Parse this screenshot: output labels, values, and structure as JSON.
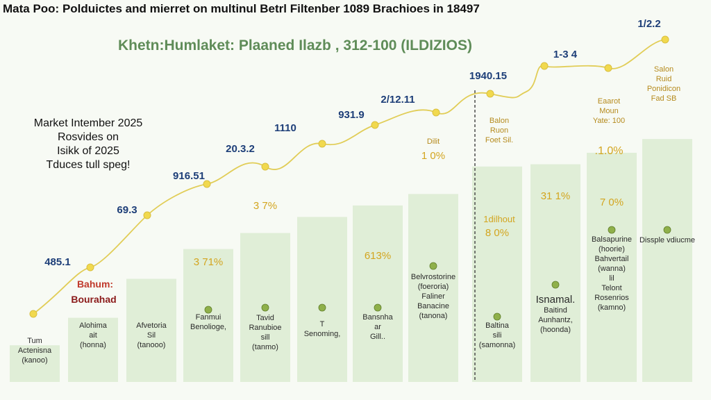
{
  "title": "Mata Poo: Polduictes and mierret on multinul Betrl Filtenber 1089 Brachioes in 18497",
  "subtitle": "Khetn:Humlaket: Plaaned Ilazb , 312-100 (ILDIZIOS)",
  "side_note": [
    "Market Intember 2025",
    "Rosvides on",
    "Isikk of 2025",
    "Tduces tull speg!"
  ],
  "colors": {
    "bar": "#d7e9cc",
    "trend": "#e1cd57",
    "value_label": "#1d3e78",
    "percent_label": "#d3a51f",
    "subtitle": "#5f8c58",
    "callout": "#c0392b"
  },
  "chart_data": {
    "type": "bar",
    "title": "Mata Poo: Polduictes and mierret on multinul Betrl Filtenber 1089 Brachioes in 18497",
    "subtitle": "Khetn:Humlaket: Plaaned Ilazb , 312-100 (ILDIZIOS)",
    "xlabel": "",
    "ylabel": "",
    "grid": false,
    "legend": "none",
    "bars": [
      {
        "height_share": 0.16,
        "labels": [
          "Tum",
          "Actenisna",
          "(kanoo)"
        ],
        "icon": false
      },
      {
        "height_share": 0.28,
        "labels": [
          "Alohima",
          "ait",
          "(honna)"
        ],
        "icon": false
      },
      {
        "height_share": 0.45,
        "percent": "",
        "labels": [
          "Afvetoria",
          "Sil",
          "(tanooo)"
        ],
        "icon": false
      },
      {
        "height_share": 0.58,
        "percent": "3 71%",
        "labels": [
          "Fanmui",
          "Benolioge,"
        ],
        "icon": true
      },
      {
        "height_share": 0.65,
        "percent": "3 7%",
        "labels": [
          "Tavid",
          "Ranubioe",
          "sill",
          "(tanmo)"
        ],
        "icon": true
      },
      {
        "height_share": 0.72,
        "percent": "",
        "labels": [
          "T",
          "Senoming,"
        ],
        "icon": true
      },
      {
        "height_share": 0.77,
        "percent": "613%",
        "labels": [
          "Bansnha",
          "ar",
          "Gill.."
        ],
        "icon": true
      },
      {
        "height_share": 0.82,
        "percent": "1 0%",
        "labels": [
          "Belvrostorine",
          "(foeroria)",
          "Faliner",
          "Banacine",
          "(tanona)"
        ],
        "icon": true
      },
      {
        "height_share": 0.94,
        "percent": "8 0%",
        "labels": [
          "Baltina",
          "sili",
          "(samonna)"
        ],
        "icon": true
      },
      {
        "height_share": 0.95,
        "percent": "31 1%",
        "labels": [
          "Isnamal.",
          "Baitind",
          "Aunhantz,",
          "(hoonda)"
        ],
        "icon": true
      },
      {
        "height_share": 1.0,
        "percent": "7 0%",
        "labels": [
          "Balsapurine",
          "(hoorie)",
          "Bahvertail",
          "(wanna)",
          "lil",
          "Telont",
          "Rosenrios",
          "(kamno)"
        ],
        "icon": true
      },
      {
        "height_share": 1.06,
        "percent": "",
        "labels": [
          "Dissple vdiucme"
        ],
        "icon": true
      }
    ],
    "trend": {
      "points": [
        {
          "label": "485.1"
        },
        {
          "label": "69.3"
        },
        {
          "label": "916.51"
        },
        {
          "label": "20.3.2"
        },
        {
          "label": "1110"
        },
        {
          "label": "931.9"
        },
        {
          "label": "2/12.11"
        },
        {
          "label": "1940.15"
        },
        {
          "label": "1-3 4"
        },
        {
          "label": "1/2.2"
        }
      ]
    },
    "callouts": [
      {
        "text": "Bahum:"
      },
      {
        "text": "Bourahad"
      }
    ],
    "bar_headers": [
      {
        "lines": [
          "Dilit"
        ]
      },
      {
        "lines": [
          "Balon",
          "Ruon",
          "Foet Sil."
        ]
      },
      {
        "lines": [
          "Eaarot",
          "Moun",
          "Yate: 100"
        ]
      },
      {
        "lines": [
          "Salon",
          "Ruid",
          "Ponidicon",
          "Fad SB"
        ]
      },
      {
        "lines": [
          "1dilhout"
        ]
      },
      {
        "lines": [
          ".1.0%"
        ]
      }
    ]
  }
}
